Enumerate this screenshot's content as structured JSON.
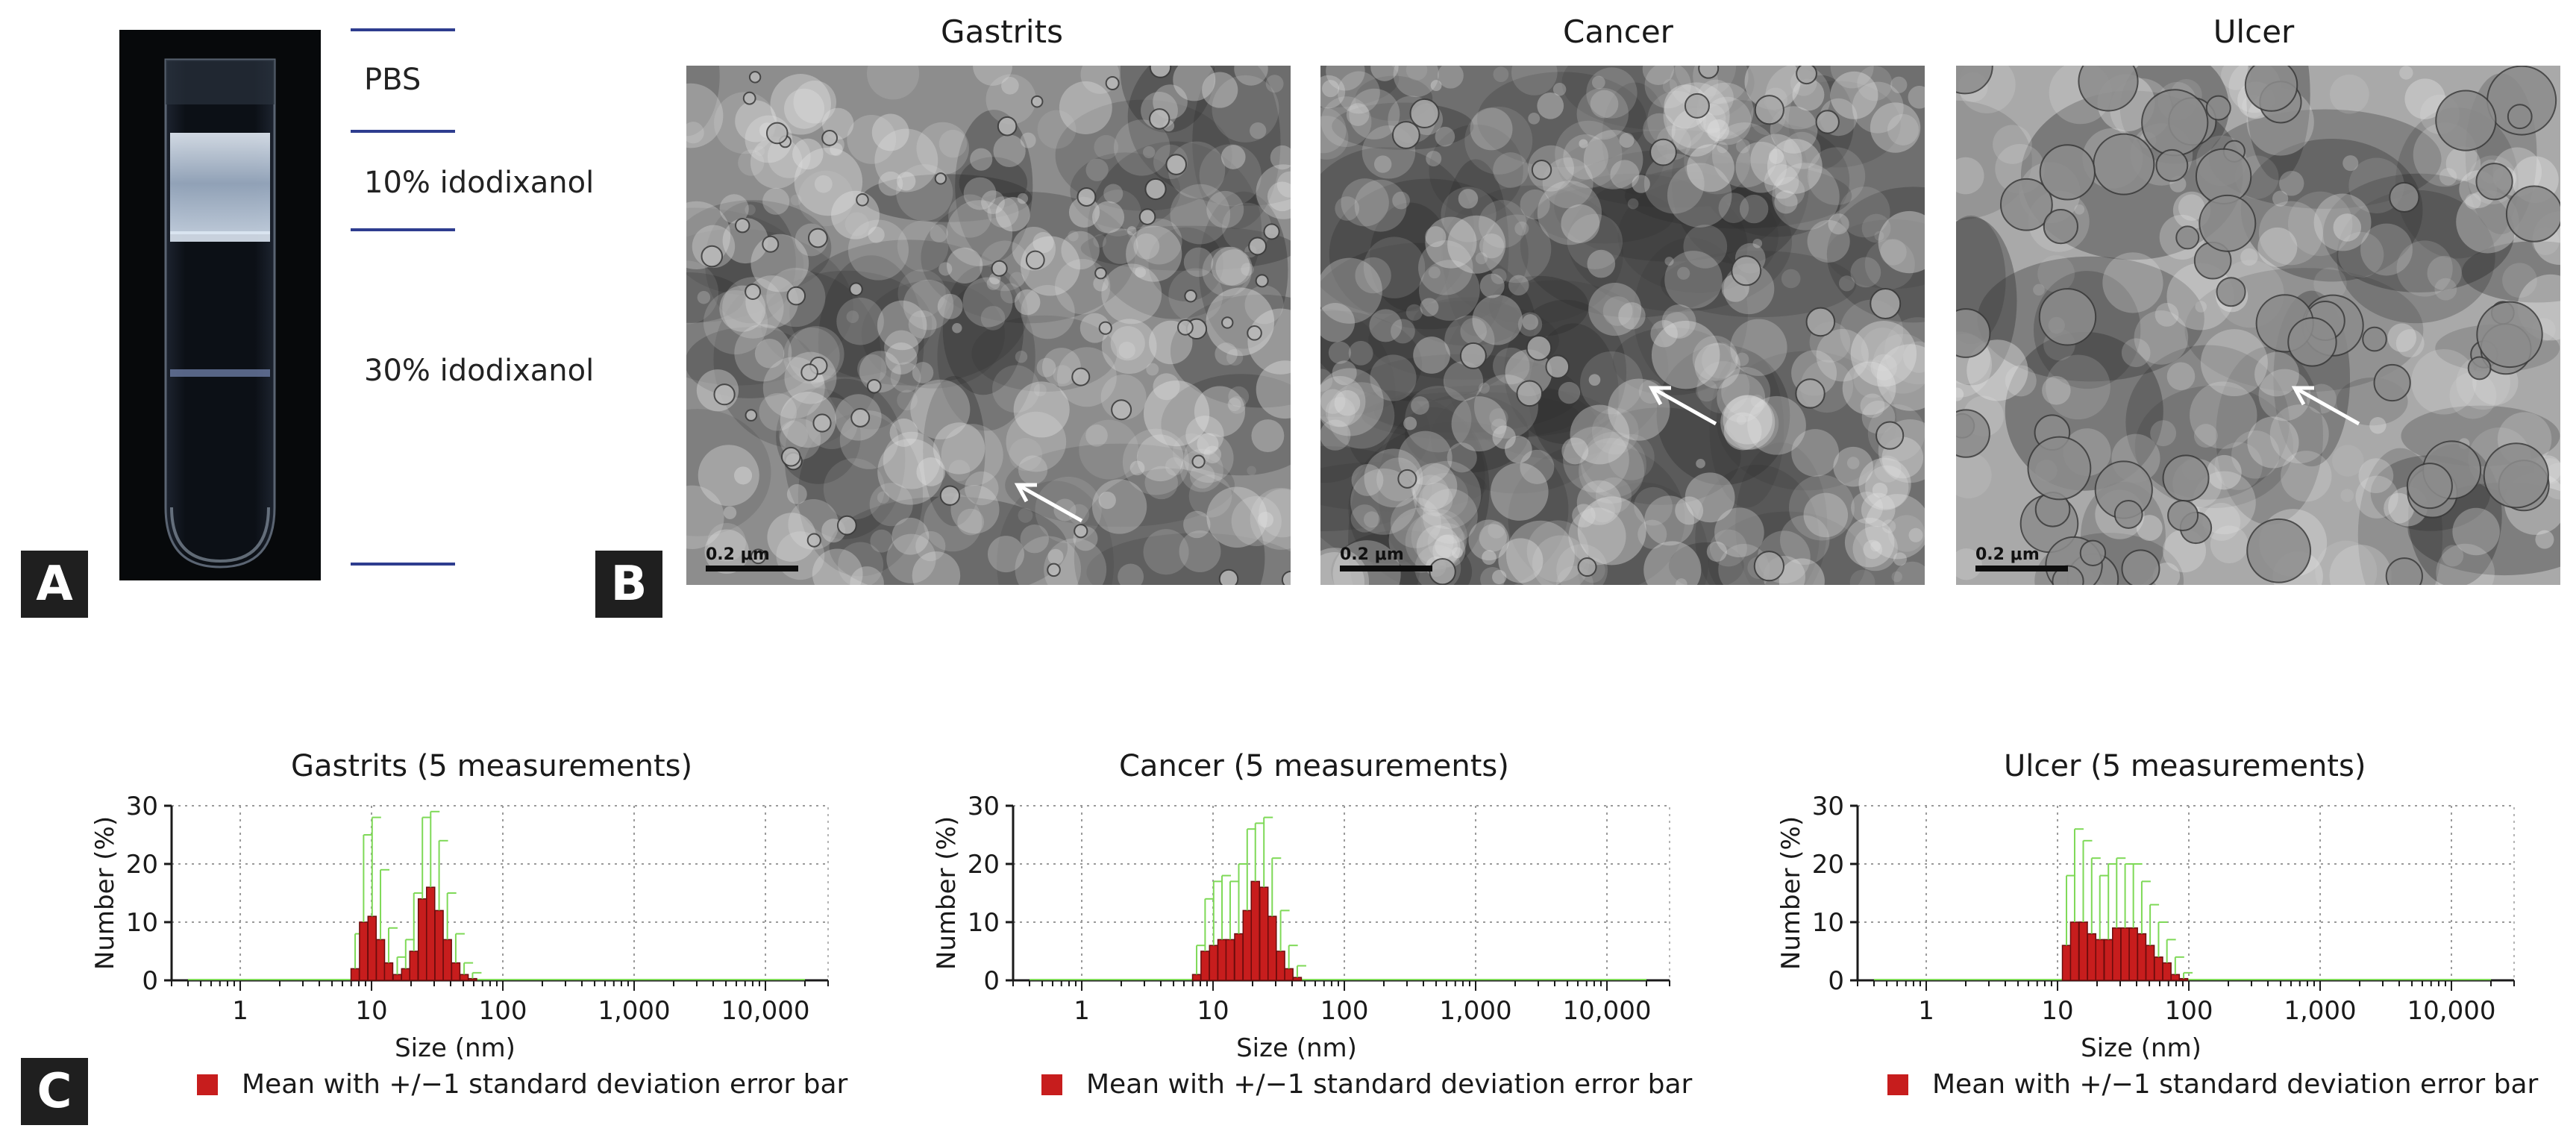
{
  "panel_labels": {
    "a": "A",
    "b": "B",
    "c": "C"
  },
  "panel_a": {
    "layers": [
      {
        "label": "PBS"
      },
      {
        "label": "10% idodixanol"
      },
      {
        "label": "30% idodixanol"
      }
    ]
  },
  "panel_b": {
    "images": [
      {
        "title": "Gastrits",
        "scale": "0.2 μm"
      },
      {
        "title": "Cancer",
        "scale": "0.2 μm"
      },
      {
        "title": "Ulcer",
        "scale": "0.2 μm"
      }
    ]
  },
  "legend_text": "Mean with +/−1 standard deviation error bar",
  "colors": {
    "bar": "#c71d1d",
    "error_bar": "#7ed957",
    "guide_line": "#2e3d8f"
  },
  "chart_data": [
    {
      "type": "bar",
      "title": "Gastrits (5 measurements)",
      "xlabel": "Size (nm)",
      "ylabel": "Number (%)",
      "x_scale": "log",
      "xlim": [
        0.3,
        30000
      ],
      "ylim": [
        0,
        30
      ],
      "x_ticks": [
        "1",
        "10",
        "100",
        "1,000",
        "10,000"
      ],
      "y_ticks": [
        "0",
        "10",
        "20",
        "30"
      ],
      "grid": true,
      "x": [
        7.5,
        8.7,
        10.1,
        11.7,
        13.5,
        15.7,
        18.2,
        21.0,
        24.4,
        28.2,
        32.7,
        37.8,
        43.8,
        50.7,
        58.8
      ],
      "values": [
        2,
        10,
        11,
        7,
        3,
        1,
        2,
        5,
        14,
        16,
        12,
        7,
        3,
        1,
        0.3
      ],
      "errors": [
        6,
        15,
        17,
        12,
        6,
        3,
        5,
        10,
        14,
        13,
        12,
        8,
        5,
        2,
        1
      ]
    },
    {
      "type": "bar",
      "title": "Cancer (5 measurements)",
      "xlabel": "Size (nm)",
      "ylabel": "Number (%)",
      "x_scale": "log",
      "xlim": [
        0.3,
        30000
      ],
      "ylim": [
        0,
        30
      ],
      "x_ticks": [
        "1",
        "10",
        "100",
        "1,000",
        "10,000"
      ],
      "y_ticks": [
        "0",
        "10",
        "20",
        "30"
      ],
      "grid": true,
      "x": [
        7.5,
        8.7,
        10.1,
        11.7,
        13.5,
        15.7,
        18.2,
        21.0,
        24.4,
        28.2,
        32.7,
        37.8,
        43.8
      ],
      "values": [
        1,
        5,
        6,
        7,
        7,
        8,
        12,
        17,
        16,
        11,
        5,
        2,
        0.5
      ],
      "errors": [
        5,
        9,
        11,
        11,
        10,
        12,
        14,
        10,
        12,
        10,
        7,
        4,
        2
      ]
    },
    {
      "type": "bar",
      "title": "Ulcer (5 measurements)",
      "xlabel": "Size (nm)",
      "ylabel": "Number (%)",
      "x_scale": "log",
      "xlim": [
        0.3,
        30000
      ],
      "ylim": [
        0,
        30
      ],
      "x_ticks": [
        "1",
        "10",
        "100",
        "1,000",
        "10,000"
      ],
      "y_ticks": [
        "0",
        "10",
        "20",
        "30"
      ],
      "grid": true,
      "x": [
        11.7,
        13.5,
        15.7,
        18.2,
        21.0,
        24.4,
        28.2,
        32.7,
        37.8,
        43.8,
        50.7,
        58.8,
        68.1,
        78.8,
        91.3
      ],
      "values": [
        6,
        10,
        10,
        8,
        7,
        7,
        9,
        9,
        9,
        8,
        6,
        4,
        3,
        1,
        0.3
      ],
      "errors": [
        12,
        16,
        14,
        13,
        11,
        13,
        12,
        11,
        11,
        9,
        7,
        6,
        4,
        3,
        1
      ]
    }
  ]
}
